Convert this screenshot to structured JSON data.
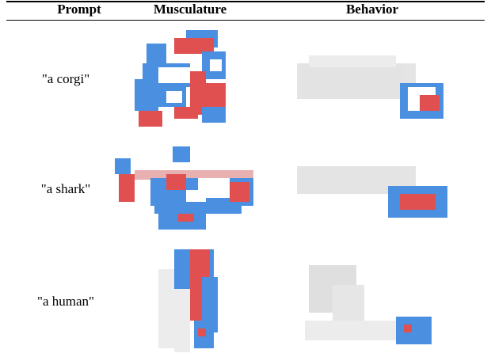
{
  "table": {
    "headers": [
      "Prompt",
      "Musculature",
      "Behavior"
    ],
    "rows": [
      {
        "prompt": "\"a corgi\""
      },
      {
        "prompt": "\"a shark\""
      },
      {
        "prompt": "\"a human\""
      }
    ]
  },
  "colors": {
    "muscle_red": "#e05050",
    "muscle_blue": "#4a8fe0",
    "passive": "#ececec",
    "ghost": "#d8d8d8"
  }
}
